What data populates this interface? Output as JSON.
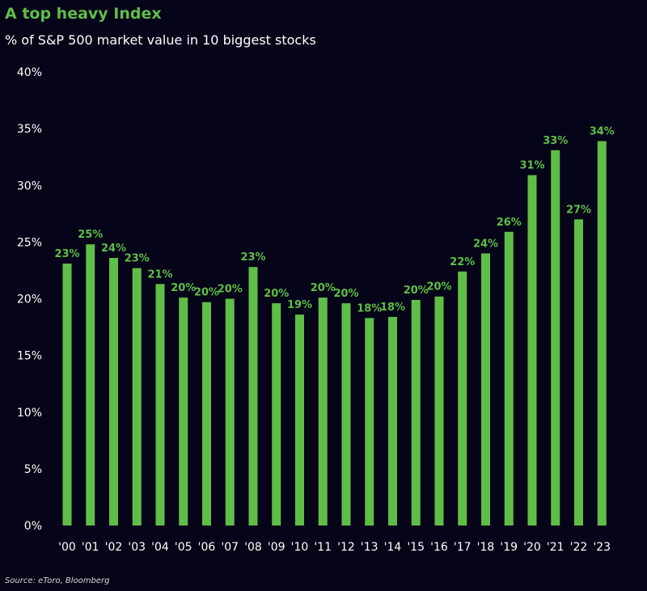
{
  "colors": {
    "background": "#050418",
    "bar": "#5fbe47",
    "label": "#5fbe47",
    "axis_text": "#ffffff",
    "title": "#5fbe47"
  },
  "chart_data": {
    "type": "bar",
    "title": "A top heavy Index",
    "subtitle": "% of S&P 500 market value in 10 biggest stocks",
    "source": "Source: eToro, Bloomberg",
    "categories": [
      "'00",
      "'01",
      "'02",
      "'03",
      "'04",
      "'05",
      "'06",
      "'07",
      "'08",
      "'09",
      "'10",
      "'11",
      "'12",
      "'13",
      "'14",
      "'15",
      "'16",
      "'17",
      "'18",
      "'19",
      "'20",
      "'21",
      "'22",
      "'23"
    ],
    "values": [
      23.1,
      24.8,
      23.6,
      22.7,
      21.3,
      20.1,
      19.7,
      20.0,
      22.8,
      19.6,
      18.6,
      20.1,
      19.6,
      18.3,
      18.4,
      19.9,
      20.2,
      22.4,
      24.0,
      25.9,
      30.9,
      33.1,
      27.0,
      33.9
    ],
    "data_labels": [
      "23%",
      "25%",
      "24%",
      "23%",
      "21%",
      "20%",
      "20%",
      "20%",
      "23%",
      "20%",
      "19%",
      "20%",
      "20%",
      "18%",
      "18%",
      "20%",
      "20%",
      "22%",
      "24%",
      "26%",
      "31%",
      "33%",
      "27%",
      "34%"
    ],
    "ylim": [
      0,
      40
    ],
    "yticks": [
      0,
      5,
      10,
      15,
      20,
      25,
      30,
      35,
      40
    ],
    "ytick_labels": [
      "0%",
      "5%",
      "10%",
      "15%",
      "20%",
      "25%",
      "30%",
      "35%",
      "40%"
    ],
    "grid": false,
    "legend": "none"
  }
}
